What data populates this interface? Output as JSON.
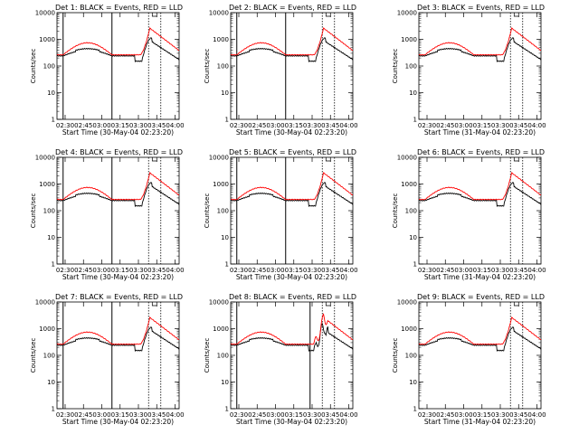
{
  "figure": {
    "black_color": "#000000",
    "red_color": "#ff0000"
  },
  "chart_data": [
    {
      "type": "line",
      "title": "Det 1: BLACK = Events, RED = LLD",
      "xlabel": "Start Time (30-May-04 02:23:20)",
      "ylabel": "Counts/sec",
      "yscale": "log",
      "ylim": [
        1,
        10000
      ],
      "xlim_minutes_after_0223": [
        0,
        100
      ],
      "xticks": [
        "02:30",
        "02:45",
        "03:00",
        "03:15",
        "03:30",
        "03:45",
        "04:00"
      ],
      "yticks": [
        "1",
        "10",
        "100",
        "1000",
        "10000"
      ],
      "solid_markers_min": [
        5,
        45
      ],
      "dotted_markers_min": [
        75,
        85
      ],
      "series": [
        {
          "name": "BLACK = Events",
          "color": "#000000"
        },
        {
          "name": "RED = LLD",
          "color": "#ff0000"
        }
      ]
    },
    {
      "type": "line",
      "title": "Det 2: BLACK = Events, RED = LLD",
      "xlabel": "Start Time (30-May-04 02:23:20)",
      "ylabel": "Counts/sec",
      "yscale": "log",
      "ylim": [
        1,
        10000
      ],
      "xlim_minutes_after_0223": [
        0,
        100
      ],
      "xticks": [
        "02:30",
        "02:45",
        "03:00",
        "03:15",
        "03:30",
        "03:45",
        "04:00"
      ],
      "yticks": [
        "1",
        "10",
        "100",
        "1000",
        "10000"
      ],
      "solid_markers_min": [
        5,
        45
      ],
      "dotted_markers_min": [
        75,
        85
      ],
      "series": [
        {
          "name": "BLACK = Events",
          "color": "#000000"
        },
        {
          "name": "RED = LLD",
          "color": "#ff0000"
        }
      ]
    },
    {
      "type": "line",
      "title": "Det 3: BLACK = Events, RED = LLD",
      "xlabel": "Start Time (31-May-04 02:23:20)",
      "ylabel": "Counts/sec",
      "yscale": "log",
      "ylim": [
        1,
        10000
      ],
      "xlim_minutes_after_0223": [
        0,
        100
      ],
      "xticks": [
        "02:30",
        "02:45",
        "03:00",
        "03:15",
        "03:30",
        "03:45",
        "04:00"
      ],
      "yticks": [
        "1",
        "10",
        "100",
        "1000",
        "10000"
      ],
      "solid_markers_min": [],
      "dotted_markers_min": [
        75,
        85
      ],
      "series": [
        {
          "name": "BLACK = Events",
          "color": "#000000"
        },
        {
          "name": "RED = LLD",
          "color": "#ff0000"
        }
      ]
    },
    {
      "type": "line",
      "title": "Det 4: BLACK = Events, RED = LLD",
      "xlabel": "Start Time (30-May-04 02:23:20)",
      "ylabel": "Counts/sec",
      "yscale": "log",
      "ylim": [
        1,
        10000
      ],
      "xlim_minutes_after_0223": [
        0,
        100
      ],
      "xticks": [
        "02:30",
        "02:45",
        "03:00",
        "03:15",
        "03:30",
        "03:45",
        "04:00"
      ],
      "yticks": [
        "1",
        "10",
        "100",
        "1000",
        "10000"
      ],
      "solid_markers_min": [
        5,
        45
      ],
      "dotted_markers_min": [
        75,
        85
      ],
      "series": [
        {
          "name": "BLACK = Events",
          "color": "#000000"
        },
        {
          "name": "RED = LLD",
          "color": "#ff0000"
        }
      ]
    },
    {
      "type": "line",
      "title": "Det 5: BLACK = Events, RED = LLD",
      "xlabel": "Start Time (30-May-04 02:23:20)",
      "ylabel": "Counts/sec",
      "yscale": "log",
      "ylim": [
        1,
        10000
      ],
      "xlim_minutes_after_0223": [
        0,
        100
      ],
      "xticks": [
        "02:30",
        "02:45",
        "03:00",
        "03:15",
        "03:30",
        "03:45",
        "04:00"
      ],
      "yticks": [
        "1",
        "10",
        "100",
        "1000",
        "10000"
      ],
      "solid_markers_min": [
        5,
        45
      ],
      "dotted_markers_min": [
        75,
        85
      ],
      "series": [
        {
          "name": "BLACK = Events",
          "color": "#000000"
        },
        {
          "name": "RED = LLD",
          "color": "#ff0000"
        }
      ]
    },
    {
      "type": "line",
      "title": "Det 6: BLACK = Events, RED = LLD",
      "xlabel": "Start Time (31-May-04 02:23:20)",
      "ylabel": "Counts/sec",
      "yscale": "log",
      "ylim": [
        1,
        10000
      ],
      "xlim_minutes_after_0223": [
        0,
        100
      ],
      "xticks": [
        "02:30",
        "02:45",
        "03:00",
        "03:15",
        "03:30",
        "03:45",
        "04:00"
      ],
      "yticks": [
        "1",
        "10",
        "100",
        "1000",
        "10000"
      ],
      "solid_markers_min": [],
      "dotted_markers_min": [
        75,
        85
      ],
      "series": [
        {
          "name": "BLACK = Events",
          "color": "#000000"
        },
        {
          "name": "RED = LLD",
          "color": "#ff0000"
        }
      ]
    },
    {
      "type": "line",
      "title": "Det 7: BLACK = Events, RED = LLD",
      "xlabel": "Start Time (30-May-04 02:23:20)",
      "ylabel": "Counts/sec",
      "yscale": "log",
      "ylim": [
        1,
        10000
      ],
      "xlim_minutes_after_0223": [
        0,
        100
      ],
      "xticks": [
        "02:30",
        "02:45",
        "03:00",
        "03:15",
        "03:30",
        "03:45",
        "04:00"
      ],
      "yticks": [
        "1",
        "10",
        "100",
        "1000",
        "10000"
      ],
      "solid_markers_min": [
        5,
        45
      ],
      "dotted_markers_min": [
        75,
        85
      ],
      "series": [
        {
          "name": "BLACK = Events",
          "color": "#000000"
        },
        {
          "name": "RED = LLD",
          "color": "#ff0000"
        }
      ]
    },
    {
      "type": "line",
      "title": "Det 8: BLACK = Events, RED = LLD",
      "xlabel": "Start Time (30-May-04 02:23:20)",
      "ylabel": "Counts/sec",
      "yscale": "log",
      "ylim": [
        1,
        10000
      ],
      "xlim_minutes_after_0223": [
        0,
        100
      ],
      "xticks": [
        "02:30",
        "02:45",
        "03:00",
        "03:15",
        "03:30",
        "03:45",
        "04:00"
      ],
      "yticks": [
        "1",
        "10",
        "100",
        "1000",
        "10000"
      ],
      "solid_markers_min": [
        5,
        65
      ],
      "dotted_markers_min": [
        75,
        85
      ],
      "series": [
        {
          "name": "BLACK = Events",
          "color": "#000000"
        },
        {
          "name": "RED = LLD",
          "color": "#ff0000"
        }
      ]
    },
    {
      "type": "line",
      "title": "Det 9: BLACK = Events, RED = LLD",
      "xlabel": "Start Time (31-May-04 02:23:20)",
      "ylabel": "Counts/sec",
      "yscale": "log",
      "ylim": [
        1,
        10000
      ],
      "xlim_minutes_after_0223": [
        0,
        100
      ],
      "xticks": [
        "02:30",
        "02:45",
        "03:00",
        "03:15",
        "03:30",
        "03:45",
        "04:00"
      ],
      "yticks": [
        "1",
        "10",
        "100",
        "1000",
        "10000"
      ],
      "solid_markers_min": [],
      "dotted_markers_min": [
        75,
        85
      ],
      "series": [
        {
          "name": "BLACK = Events",
          "color": "#000000"
        },
        {
          "name": "RED = LLD",
          "color": "#ff0000"
        }
      ]
    }
  ]
}
